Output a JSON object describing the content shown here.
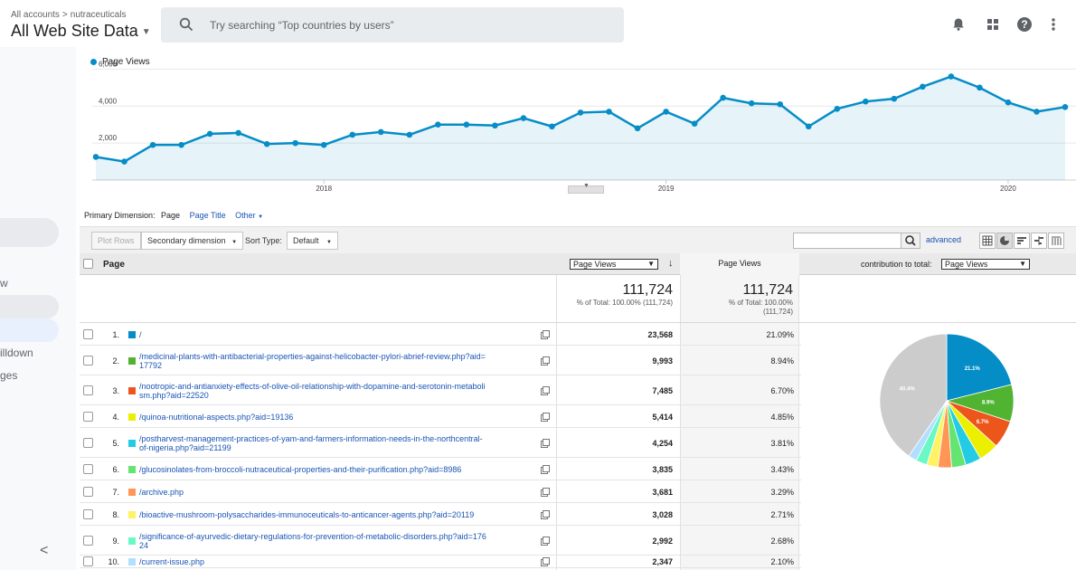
{
  "header": {
    "breadcrumb": [
      "All accounts",
      "nutraceuticals"
    ],
    "breadcrumb_sep": ">",
    "property": "All Web Site Data",
    "search_placeholder": "Try searching “Top countries by users”",
    "icons": [
      "bell-icon",
      "apps-grid-icon",
      "help-icon",
      "more-vert-icon"
    ]
  },
  "leftnav": {
    "fragments": [
      "w",
      "illdown",
      "ges"
    ],
    "collapse": "<"
  },
  "chart_data": {
    "type": "area",
    "series": [
      {
        "name": "Page Views",
        "color": "#058dc7",
        "values": [
          1250,
          1000,
          1900,
          1900,
          2500,
          2550,
          1950,
          2000,
          1900,
          2450,
          2600,
          2450,
          3000,
          3000,
          2950,
          3350,
          2900,
          3650,
          3700,
          2800,
          3700,
          3050,
          4450,
          4150,
          4100,
          2900,
          3850,
          4250,
          4400,
          5050,
          5600,
          5000,
          4200,
          3700,
          3950
        ]
      }
    ],
    "yticks": [
      "6,000",
      "4,000",
      "2,000"
    ],
    "ytick_values": [
      6000,
      4000,
      2000
    ],
    "ylim": [
      0,
      7000
    ],
    "xticks": [
      {
        "label": "2018",
        "index": 8
      },
      {
        "label": "2019",
        "index": 20
      },
      {
        "label": "2020",
        "index": 32
      }
    ],
    "grid": true
  },
  "dimension": {
    "label": "Primary Dimension:",
    "current": "Page",
    "links": [
      "Page Title",
      "Other"
    ]
  },
  "toolbar": {
    "plot_rows": "Plot Rows",
    "secondary": "Secondary dimension",
    "sort_label": "Sort Type:",
    "sort_value": "Default",
    "advanced": "advanced"
  },
  "table": {
    "col_page": "Page",
    "col_metric_select": "Page Views",
    "col_metric2": "Page Views",
    "contribution_label": "contribution to total:",
    "contribution_select": "Page Views",
    "total_1": "111,724",
    "total_1_pct": "% of Total: 100.00% (111,724)",
    "total_2": "111,724",
    "total_2_pct_a": "% of Total: 100.00%",
    "total_2_pct_b": "(111,724)",
    "rows": [
      {
        "idx": "1.",
        "color": "#058dc7",
        "page": [
          "/"
        ],
        "views": "23,568",
        "pct": "21.09%"
      },
      {
        "idx": "2.",
        "color": "#50b432",
        "page": [
          "/medicinal-plants-with-antibacterial-properties-against-helicobacter-pylori-abrief-review.php?aid=",
          "17792"
        ],
        "views": "9,993",
        "pct": "8.94%"
      },
      {
        "idx": "3.",
        "color": "#ed561b",
        "page": [
          "/nootropic-and-antianxiety-effects-of-olive-oil-relationship-with-dopamine-and-serotonin-metaboli",
          "sm.php?aid=22520"
        ],
        "views": "7,485",
        "pct": "6.70%"
      },
      {
        "idx": "4.",
        "color": "#edef00",
        "page": [
          "/quinoa-nutritional-aspects.php?aid=19136"
        ],
        "views": "5,414",
        "pct": "4.85%"
      },
      {
        "idx": "5.",
        "color": "#24cbe5",
        "page": [
          "/postharvest-management-practices-of-yam-and-farmers-information-needs-in-the-northcentral-",
          "of-nigeria.php?aid=21199"
        ],
        "views": "4,254",
        "pct": "3.81%"
      },
      {
        "idx": "6.",
        "color": "#64e572",
        "page": [
          "/glucosinolates-from-broccoli-nutraceutical-properties-and-their-purification.php?aid=8986"
        ],
        "views": "3,835",
        "pct": "3.43%"
      },
      {
        "idx": "7.",
        "color": "#ff9655",
        "page": [
          "/archive.php"
        ],
        "views": "3,681",
        "pct": "3.29%"
      },
      {
        "idx": "8.",
        "color": "#fff263",
        "page": [
          "/bioactive-mushroom-polysaccharides-immunoceuticals-to-anticancer-agents.php?aid=20119"
        ],
        "views": "3,028",
        "pct": "2.71%"
      },
      {
        "idx": "9.",
        "color": "#6af9c4",
        "page": [
          "/significance-of-ayurvedic-dietary-regulations-for-prevention-of-metabolic-disorders.php?aid=176",
          "24"
        ],
        "views": "2,992",
        "pct": "2.68%"
      },
      {
        "idx": "10.",
        "color": "#b2deff",
        "page": [
          "/current-issue.php"
        ],
        "views": "2,347",
        "pct": "2.10%"
      }
    ]
  },
  "pie": {
    "slices": [
      {
        "value": 21.09,
        "color": "#058dc7",
        "label": "21.1%"
      },
      {
        "value": 8.94,
        "color": "#50b432",
        "label": "8.9%"
      },
      {
        "value": 6.7,
        "color": "#ed561b",
        "label": "6.7%"
      },
      {
        "value": 4.85,
        "color": "#edef00",
        "label": ""
      },
      {
        "value": 3.81,
        "color": "#24cbe5",
        "label": ""
      },
      {
        "value": 3.43,
        "color": "#64e572",
        "label": ""
      },
      {
        "value": 3.29,
        "color": "#ff9655",
        "label": ""
      },
      {
        "value": 2.71,
        "color": "#fff263",
        "label": ""
      },
      {
        "value": 2.68,
        "color": "#6af9c4",
        "label": ""
      },
      {
        "value": 2.1,
        "color": "#b2deff",
        "label": ""
      },
      {
        "value": 40.4,
        "color": "#cccccc",
        "label": "40.4%"
      }
    ]
  }
}
